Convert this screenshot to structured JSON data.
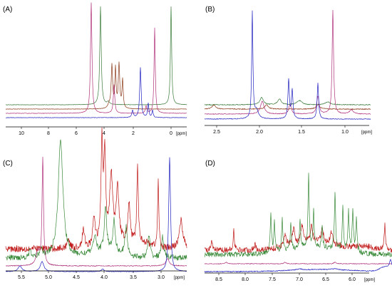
{
  "chart_data": [
    {
      "type": "line",
      "panel_label": "(A)",
      "x_unit": "[ppm]",
      "x_ticks": [
        "10",
        "8",
        "6",
        "4",
        "2",
        "0"
      ],
      "xlim": [
        11,
        -1
      ],
      "series_colors": [
        "#3a7a3a",
        "#8b3a1a",
        "#b0307a",
        "#2020c0"
      ]
    },
    {
      "type": "line",
      "panel_label": "(B)",
      "x_unit": "[ppm]",
      "x_ticks": [
        "2.5",
        "2.0",
        "1.5",
        "1.0"
      ],
      "xlim": [
        2.7,
        0.6
      ],
      "series_colors": [
        "#3a7a3a",
        "#8b3a1a",
        "#b0307a",
        "#2020c0"
      ]
    },
    {
      "type": "line",
      "panel_label": "(C)",
      "x_unit": "[ppm]",
      "x_ticks": [
        "5.5",
        "5.0",
        "4.5",
        "4.0",
        "3.5",
        "3.0"
      ],
      "xlim": [
        5.7,
        2.75
      ],
      "series_colors": [
        "#c01818",
        "#3a8a3a",
        "#b0307a",
        "#2020c0"
      ]
    },
    {
      "type": "line",
      "panel_label": "(D)",
      "x_unit": "[ppm]",
      "x_ticks": [
        "8.5",
        "8.0",
        "7.5",
        "7.0",
        "6.5",
        "6.0"
      ],
      "xlim": [
        8.75,
        5.75
      ],
      "series_colors": [
        "#c01818",
        "#3a8a3a",
        "#b0307a",
        "#2020c0"
      ]
    }
  ]
}
